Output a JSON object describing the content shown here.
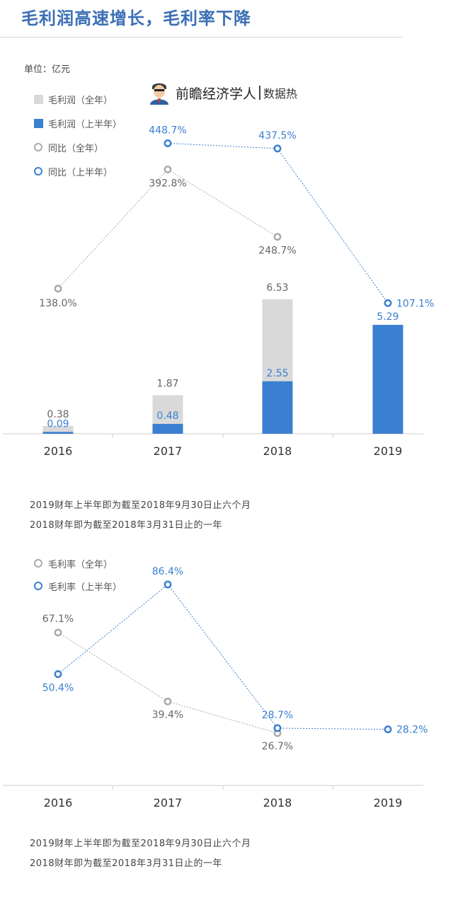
{
  "header": {
    "title": "毛利润高速增长，毛利率下降",
    "unit": "单位：亿元"
  },
  "brand": {
    "name": "前瞻经济学人",
    "tag": "数据热"
  },
  "colors": {
    "title": "#3b6fb6",
    "bar_full": "#d9d9d9",
    "bar_half": "#3a7fd1",
    "line_full": "#aaaaaa",
    "line_half": "#3a7fd1",
    "label_full": "#666666",
    "label_half": "#3a7fd1"
  },
  "legend_top": [
    {
      "label": "毛利润（全年）",
      "kind": "bar-full",
      "icon": "gray-square"
    },
    {
      "label": "毛利润（上半年）",
      "kind": "bar-half",
      "icon": "blue-square"
    },
    {
      "label": "同比（全年）",
      "kind": "line-full",
      "icon": "gray-ring"
    },
    {
      "label": "同比（上半年）",
      "kind": "line-half",
      "icon": "blue-ring"
    }
  ],
  "legend_bottom": [
    {
      "label": "毛利率（全年）",
      "kind": "line-full",
      "icon": "gray-ring"
    },
    {
      "label": "毛利率（上半年）",
      "kind": "line-half",
      "icon": "blue-ring"
    }
  ],
  "chart_data": [
    {
      "type": "bar",
      "categories": [
        "2016",
        "2017",
        "2018",
        "2019"
      ],
      "series": [
        {
          "name": "毛利润（全年）",
          "values": [
            0.38,
            1.87,
            6.53,
            null
          ]
        },
        {
          "name": "毛利润（上半年）",
          "values": [
            0.09,
            0.48,
            2.55,
            5.29
          ]
        }
      ],
      "value_labels": [
        [
          "0.38",
          "1.87",
          "6.53",
          null
        ],
        [
          "0.09",
          "0.48",
          "2.55",
          "5.29"
        ]
      ],
      "ylim": [
        0,
        6.53
      ],
      "grid": false
    },
    {
      "type": "line",
      "categories": [
        "2016",
        "2017",
        "2018",
        "2019"
      ],
      "series": [
        {
          "name": "同比（全年）",
          "values": [
            138.0,
            392.8,
            248.7,
            null
          ]
        },
        {
          "name": "同比（上半年）",
          "values": [
            null,
            448.7,
            437.5,
            107.1
          ]
        }
      ],
      "value_labels": [
        [
          "138.0%",
          "392.8%",
          "248.7%",
          null
        ],
        [
          null,
          "448.7%",
          "437.5%",
          "107.1%"
        ]
      ],
      "ylim": [
        100,
        460
      ],
      "grid": false
    },
    {
      "type": "line",
      "categories": [
        "2016",
        "2017",
        "2018",
        "2019"
      ],
      "series": [
        {
          "name": "毛利率（全年）",
          "values": [
            67.1,
            39.4,
            26.7,
            null
          ]
        },
        {
          "name": "毛利率（上半年）",
          "values": [
            50.4,
            86.4,
            28.7,
            28.2
          ]
        }
      ],
      "value_labels": [
        [
          "67.1%",
          "39.4%",
          "26.7%",
          null
        ],
        [
          "50.4%",
          "86.4%",
          "28.7%",
          "28.2%"
        ]
      ],
      "ylim": [
        20,
        90
      ],
      "grid": false
    }
  ],
  "notes_top": [
    "2019财年上半年即为截至2018年9月30日止六个月",
    "2018财年即为截至2018年3月31日止的一年"
  ],
  "notes_bottom": [
    "2019财年上半年即为截至2018年9月30日止六个月",
    "2018财年即为截至2018年3月31日止的一年"
  ]
}
